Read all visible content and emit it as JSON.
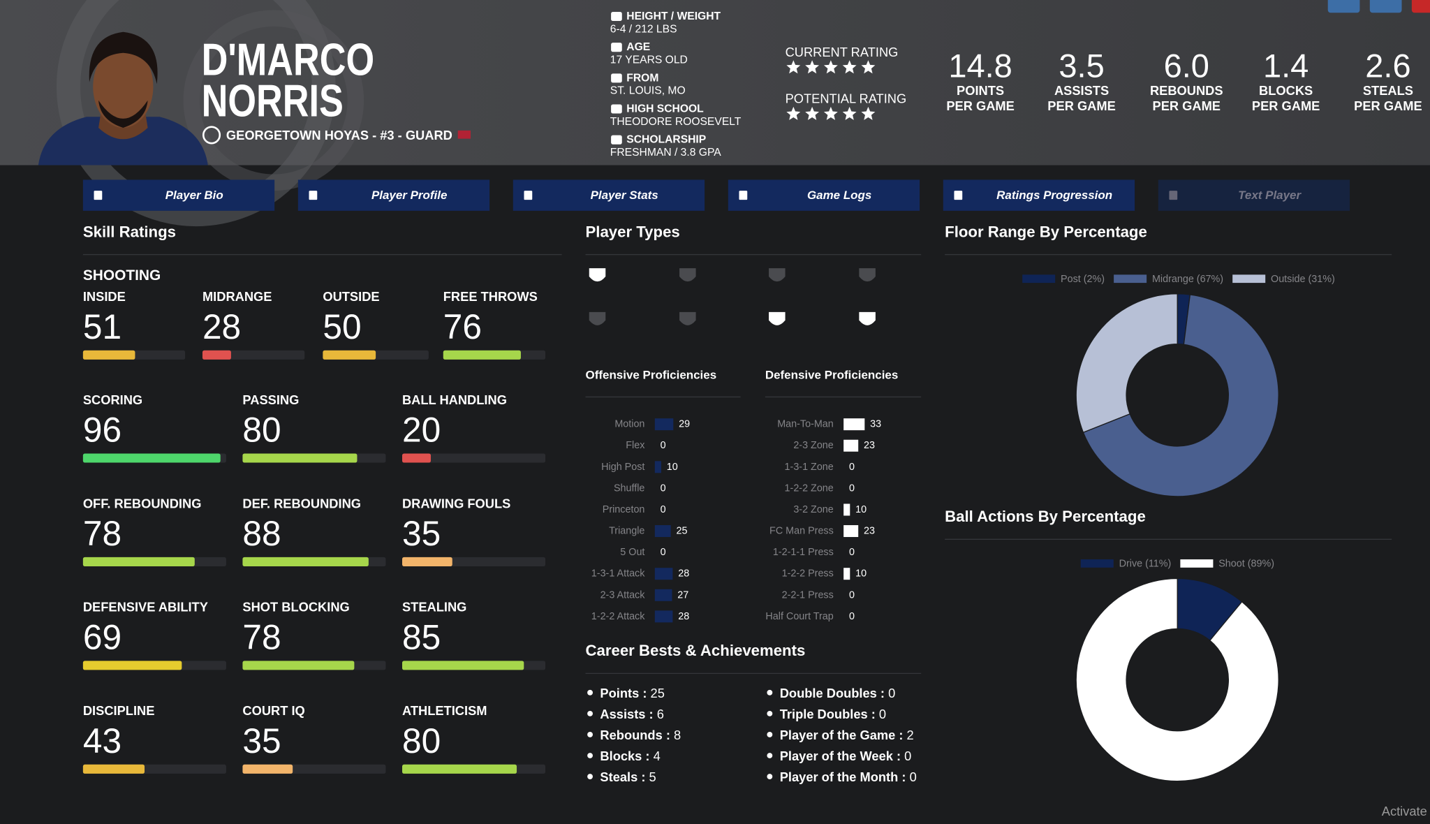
{
  "header": {
    "first_name": "D'MARCO",
    "last_name": "NORRIS",
    "team_line": "GEORGETOWN HOYAS - #3 - GUARD",
    "info": [
      {
        "label": "HEIGHT / WEIGHT",
        "value": "6-4 / 212 LBS"
      },
      {
        "label": "AGE",
        "value": "17 YEARS OLD"
      },
      {
        "label": "FROM",
        "value": "ST. LOUIS, MO"
      },
      {
        "label": "HIGH SCHOOL",
        "value": "THEODORE ROOSEVELT"
      },
      {
        "label": "SCHOLARSHIP",
        "value": "FRESHMAN / 3.8 GPA"
      }
    ],
    "ratings": [
      {
        "label": "CURRENT RATING",
        "stars": 5
      },
      {
        "label": "POTENTIAL RATING",
        "stars": 5
      }
    ],
    "stats": [
      {
        "value": "14.8",
        "label": [
          "POINTS",
          "PER GAME"
        ]
      },
      {
        "value": "3.5",
        "label": [
          "ASSISTS",
          "PER GAME"
        ]
      },
      {
        "value": "6.0",
        "label": [
          "REBOUNDS",
          "PER GAME"
        ]
      },
      {
        "value": "1.4",
        "label": [
          "BLOCKS",
          "PER GAME"
        ]
      },
      {
        "value": "2.6",
        "label": [
          "STEALS",
          "PER GAME"
        ]
      }
    ]
  },
  "tabs": [
    "Player Bio",
    "Player Profile",
    "Player Stats",
    "Game Logs",
    "Ratings Progression",
    "Text Player"
  ],
  "skills": {
    "title": "Skill Ratings",
    "shooting": {
      "title": "SHOOTING",
      "items": [
        {
          "label": "INSIDE",
          "value": 51,
          "color": "#e8b83a"
        },
        {
          "label": "MIDRANGE",
          "value": 28,
          "color": "#e0524f"
        },
        {
          "label": "OUTSIDE",
          "value": 50,
          "color": "#e8b83a"
        },
        {
          "label": "FREE THROWS",
          "value": 76,
          "color": "#a6d64b"
        }
      ]
    },
    "items": [
      {
        "label": "SCORING",
        "value": 96,
        "color": "#4ed66b"
      },
      {
        "label": "PASSING",
        "value": 80,
        "color": "#a6d64b"
      },
      {
        "label": "BALL HANDLING",
        "value": 20,
        "color": "#e0524f"
      },
      {
        "label": "OFF. REBOUNDING",
        "value": 78,
        "color": "#a6d64b"
      },
      {
        "label": "DEF. REBOUNDING",
        "value": 88,
        "color": "#a6d64b"
      },
      {
        "label": "DRAWING FOULS",
        "value": 35,
        "color": "#f2b46a"
      },
      {
        "label": "DEFENSIVE ABILITY",
        "value": 69,
        "color": "#e6cc2e"
      },
      {
        "label": "SHOT BLOCKING",
        "value": 78,
        "color": "#a6d64b"
      },
      {
        "label": "STEALING",
        "value": 85,
        "color": "#a6d64b"
      },
      {
        "label": "DISCIPLINE",
        "value": 43,
        "color": "#e8b83a"
      },
      {
        "label": "COURT IQ",
        "value": 35,
        "color": "#f2b46a"
      },
      {
        "label": "ATHLETICISM",
        "value": 80,
        "color": "#a6d64b"
      }
    ]
  },
  "player_types": {
    "title": "Player Types",
    "offensive": {
      "title": "Offensive Proficiencies",
      "color": "#13295e",
      "items": [
        {
          "label": "Motion",
          "value": 29
        },
        {
          "label": "Flex",
          "value": 0
        },
        {
          "label": "High Post",
          "value": 10
        },
        {
          "label": "Shuffle",
          "value": 0
        },
        {
          "label": "Princeton",
          "value": 0
        },
        {
          "label": "Triangle",
          "value": 25
        },
        {
          "label": "5 Out",
          "value": 0
        },
        {
          "label": "1-3-1 Attack",
          "value": 28
        },
        {
          "label": "2-3 Attack",
          "value": 27
        },
        {
          "label": "1-2-2 Attack",
          "value": 28
        }
      ]
    },
    "defensive": {
      "title": "Defensive Proficiencies",
      "color": "#ffffff",
      "items": [
        {
          "label": "Man-To-Man",
          "value": 33
        },
        {
          "label": "2-3 Zone",
          "value": 23
        },
        {
          "label": "1-3-1 Zone",
          "value": 0
        },
        {
          "label": "1-2-2 Zone",
          "value": 0
        },
        {
          "label": "3-2 Zone",
          "value": 10
        },
        {
          "label": "FC Man Press",
          "value": 23
        },
        {
          "label": "1-2-1-1 Press",
          "value": 0
        },
        {
          "label": "1-2-2 Press",
          "value": 10
        },
        {
          "label": "2-2-1 Press",
          "value": 0
        },
        {
          "label": "Half Court Trap",
          "value": 0
        }
      ]
    }
  },
  "career": {
    "title": "Career Bests & Achievements",
    "left": [
      {
        "label": "Points :",
        "value": 25
      },
      {
        "label": "Assists :",
        "value": 6
      },
      {
        "label": "Rebounds :",
        "value": 8
      },
      {
        "label": "Blocks :",
        "value": 4
      },
      {
        "label": "Steals :",
        "value": 5
      }
    ],
    "right": [
      {
        "label": "Double Doubles :",
        "value": 0
      },
      {
        "label": "Triple Doubles :",
        "value": 0
      },
      {
        "label": "Player of the Game :",
        "value": 2
      },
      {
        "label": "Player of the Week :",
        "value": 0
      },
      {
        "label": "Player of the Month :",
        "value": 0
      }
    ]
  },
  "chart_data": [
    {
      "type": "pie",
      "title": "Floor Range By Percentage",
      "categories": [
        "Post (2%)",
        "Midrange (67%)",
        "Outside (31%)"
      ],
      "values": [
        2,
        67,
        31
      ],
      "colors": [
        "#0f2456",
        "#4a5f8f",
        "#b7c0d6"
      ]
    },
    {
      "type": "pie",
      "title": "Ball Actions By Percentage",
      "categories": [
        "Drive (11%)",
        "Shoot (89%)"
      ],
      "values": [
        11,
        89
      ],
      "colors": [
        "#0f2456",
        "#ffffff"
      ]
    }
  ],
  "watermark": "Activate"
}
